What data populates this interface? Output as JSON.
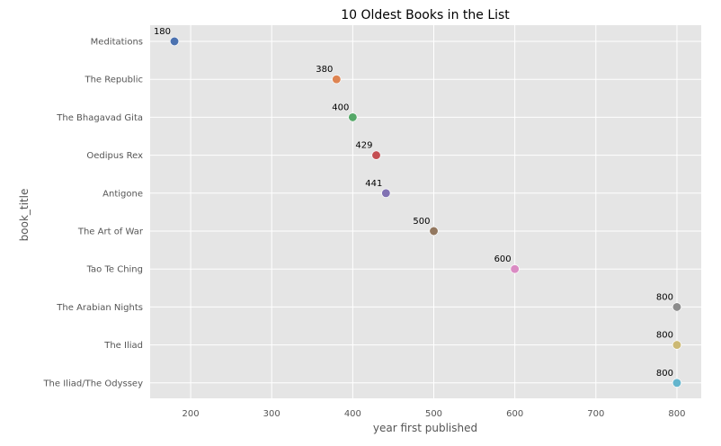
{
  "chart_data": {
    "type": "scatter",
    "title": "10 Oldest Books in the List",
    "xlabel": "year first published",
    "ylabel": "book_title",
    "xlim": [
      150,
      830
    ],
    "xticks": [
      200,
      300,
      400,
      500,
      600,
      700,
      800
    ],
    "grid": true,
    "legend": "none",
    "categories": [
      "Meditations",
      "The Republic",
      "The Bhagavad Gita",
      "Oedipus Rex",
      "Antigone",
      "The Art of War",
      "Tao Te Ching",
      "The Arabian Nights",
      "The Iliad",
      "The Iliad/The Odyssey"
    ],
    "values": [
      180,
      380,
      400,
      429,
      441,
      500,
      600,
      800,
      800,
      800
    ],
    "data_labels": [
      "180",
      "380",
      "400",
      "429",
      "441",
      "500",
      "600",
      "800",
      "800",
      "800"
    ],
    "colors": [
      "#4c72b0",
      "#dd8452",
      "#55a868",
      "#c44e52",
      "#8172b3",
      "#937860",
      "#da8bc3",
      "#8c8c8c",
      "#ccb974",
      "#64b5cd"
    ],
    "background": "#e5e5e5"
  }
}
